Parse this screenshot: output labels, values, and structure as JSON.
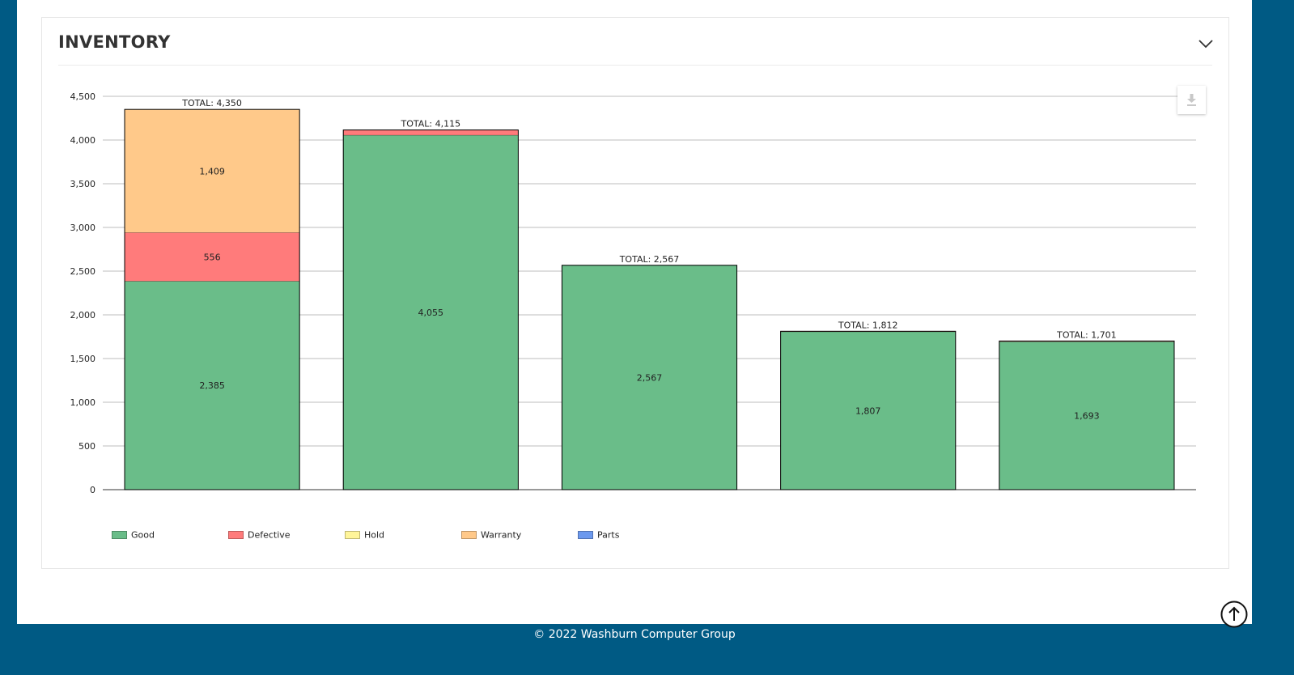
{
  "card": {
    "title": "INVENTORY"
  },
  "footer": {
    "copyright": "© 2022 Washburn Computer Group"
  },
  "icons": {
    "collapse": "chevron-down-icon",
    "download": "download-icon",
    "scroll_top": "arrow-up-circle-icon"
  },
  "chart_data": {
    "type": "bar",
    "stacked": true,
    "title": "",
    "xlabel": "",
    "ylabel": "",
    "ylim": [
      0,
      4500
    ],
    "yticks": [
      0,
      500,
      1000,
      1500,
      2000,
      2500,
      3000,
      3500,
      4000,
      4500
    ],
    "ytick_labels": [
      "0",
      "500",
      "1,000",
      "1,500",
      "2,000",
      "2,500",
      "3,000",
      "3,500",
      "4,000",
      "4,500"
    ],
    "grid": true,
    "legend_position": "bottom-left",
    "totals": [
      4350,
      4115,
      2567,
      1812,
      1701
    ],
    "total_labels": [
      "TOTAL: 4,350",
      "TOTAL: 4,115",
      "TOTAL: 2,567",
      "TOTAL: 1,812",
      "TOTAL: 1,701"
    ],
    "series": [
      {
        "name": "Good",
        "color": "#6abd89",
        "values": [
          2385,
          4055,
          2567,
          1807,
          1693
        ],
        "labels": [
          "2,385",
          "4,055",
          "2,567",
          "1,807",
          "1,693"
        ]
      },
      {
        "name": "Defective",
        "color": "#ff7b7b",
        "values": [
          556,
          60,
          0,
          5,
          8
        ],
        "labels": [
          "556",
          "",
          "",
          "",
          ""
        ]
      },
      {
        "name": "Hold",
        "color": "#fff59a",
        "values": [
          0,
          0,
          0,
          0,
          0
        ],
        "labels": [
          "",
          "",
          "",
          "",
          ""
        ]
      },
      {
        "name": "Warranty",
        "color": "#ffc98a",
        "values": [
          1409,
          0,
          0,
          0,
          0
        ],
        "labels": [
          "1,409",
          "",
          "",
          "",
          ""
        ]
      },
      {
        "name": "Parts",
        "color": "#6c99ee",
        "values": [
          0,
          0,
          0,
          0,
          0
        ],
        "labels": [
          "",
          "",
          "",
          "",
          ""
        ]
      }
    ]
  }
}
